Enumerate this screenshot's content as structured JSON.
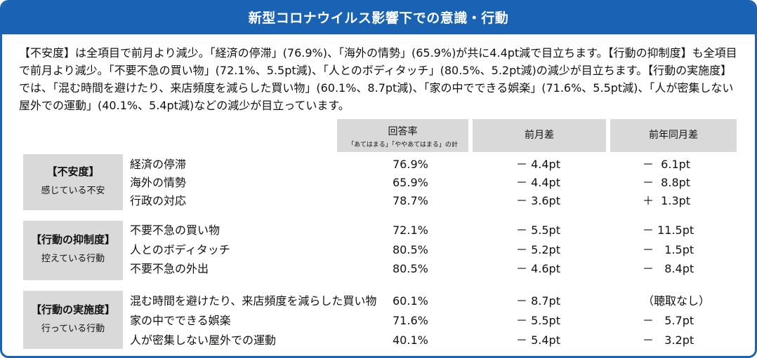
{
  "title": "新型コロナウイルス影響下での意識・行動",
  "summary": "【不安度】は全項目で前月より減少。「経済の停滞」(76.9%)、「海外の情勢」(65.9%)が共に4.4pt減で目立ちます。【行動の抑制度】も全項目で前月より減少。「不要不急の買い物」(72.1%、5.5pt減)、「人とのボディタッチ」(80.5%、5.2pt減)の減少が目立ちます。【行動の実施度】では、「混む時間を避けたり、来店頻度を減らした買い物」(60.1%、8.7pt減)、「家の中でできる娯楽」(71.6%、5.5pt減)、「人が密集しない屋外での運動」(40.1%、5.4pt減)などの減少が目立っています。",
  "columns": {
    "rate": "回答率",
    "rate_note": "「あてはまる」「ややあてはまる」の計",
    "diff_prev_month": "前月差",
    "diff_prev_year": "前年同月差"
  },
  "groups": [
    {
      "title": "【不安度】",
      "subtitle": "感じている不安",
      "rows": [
        {
          "item": "経済の停滞",
          "rate": "76.9%",
          "diff": "－ 4.4pt",
          "yoy": "－  6.1pt"
        },
        {
          "item": "海外の情勢",
          "rate": "65.9%",
          "diff": "－ 4.4pt",
          "yoy": "－  8.8pt"
        },
        {
          "item": "行政の対応",
          "rate": "78.7%",
          "diff": "－ 3.6pt",
          "yoy": "＋  1.3pt"
        }
      ]
    },
    {
      "title": "【行動の抑制度】",
      "subtitle": "控えている行動",
      "rows": [
        {
          "item": "不要不急の買い物",
          "rate": "72.1%",
          "diff": "－ 5.5pt",
          "yoy": "－ 11.5pt"
        },
        {
          "item": "人とのボディタッチ",
          "rate": "80.5%",
          "diff": "－ 5.2pt",
          "yoy": "－   1.5pt"
        },
        {
          "item": "不要不急の外出",
          "rate": "80.5%",
          "diff": "－ 4.6pt",
          "yoy": "－   8.4pt"
        }
      ]
    },
    {
      "title": "【行動の実施度】",
      "subtitle": "行っている行動",
      "rows": [
        {
          "item": "混む時間を避けたり、来店頻度を減らした買い物",
          "rate": "60.1%",
          "diff": "－ 8.7pt",
          "yoy": "（聴取なし）"
        },
        {
          "item": "家の中でできる娯楽",
          "rate": "71.6%",
          "diff": "－ 5.5pt",
          "yoy": "－   5.7pt"
        },
        {
          "item": "人が密集しない屋外での運動",
          "rate": "40.1%",
          "diff": "－ 5.4pt",
          "yoy": "－   3.2pt"
        }
      ]
    }
  ]
}
